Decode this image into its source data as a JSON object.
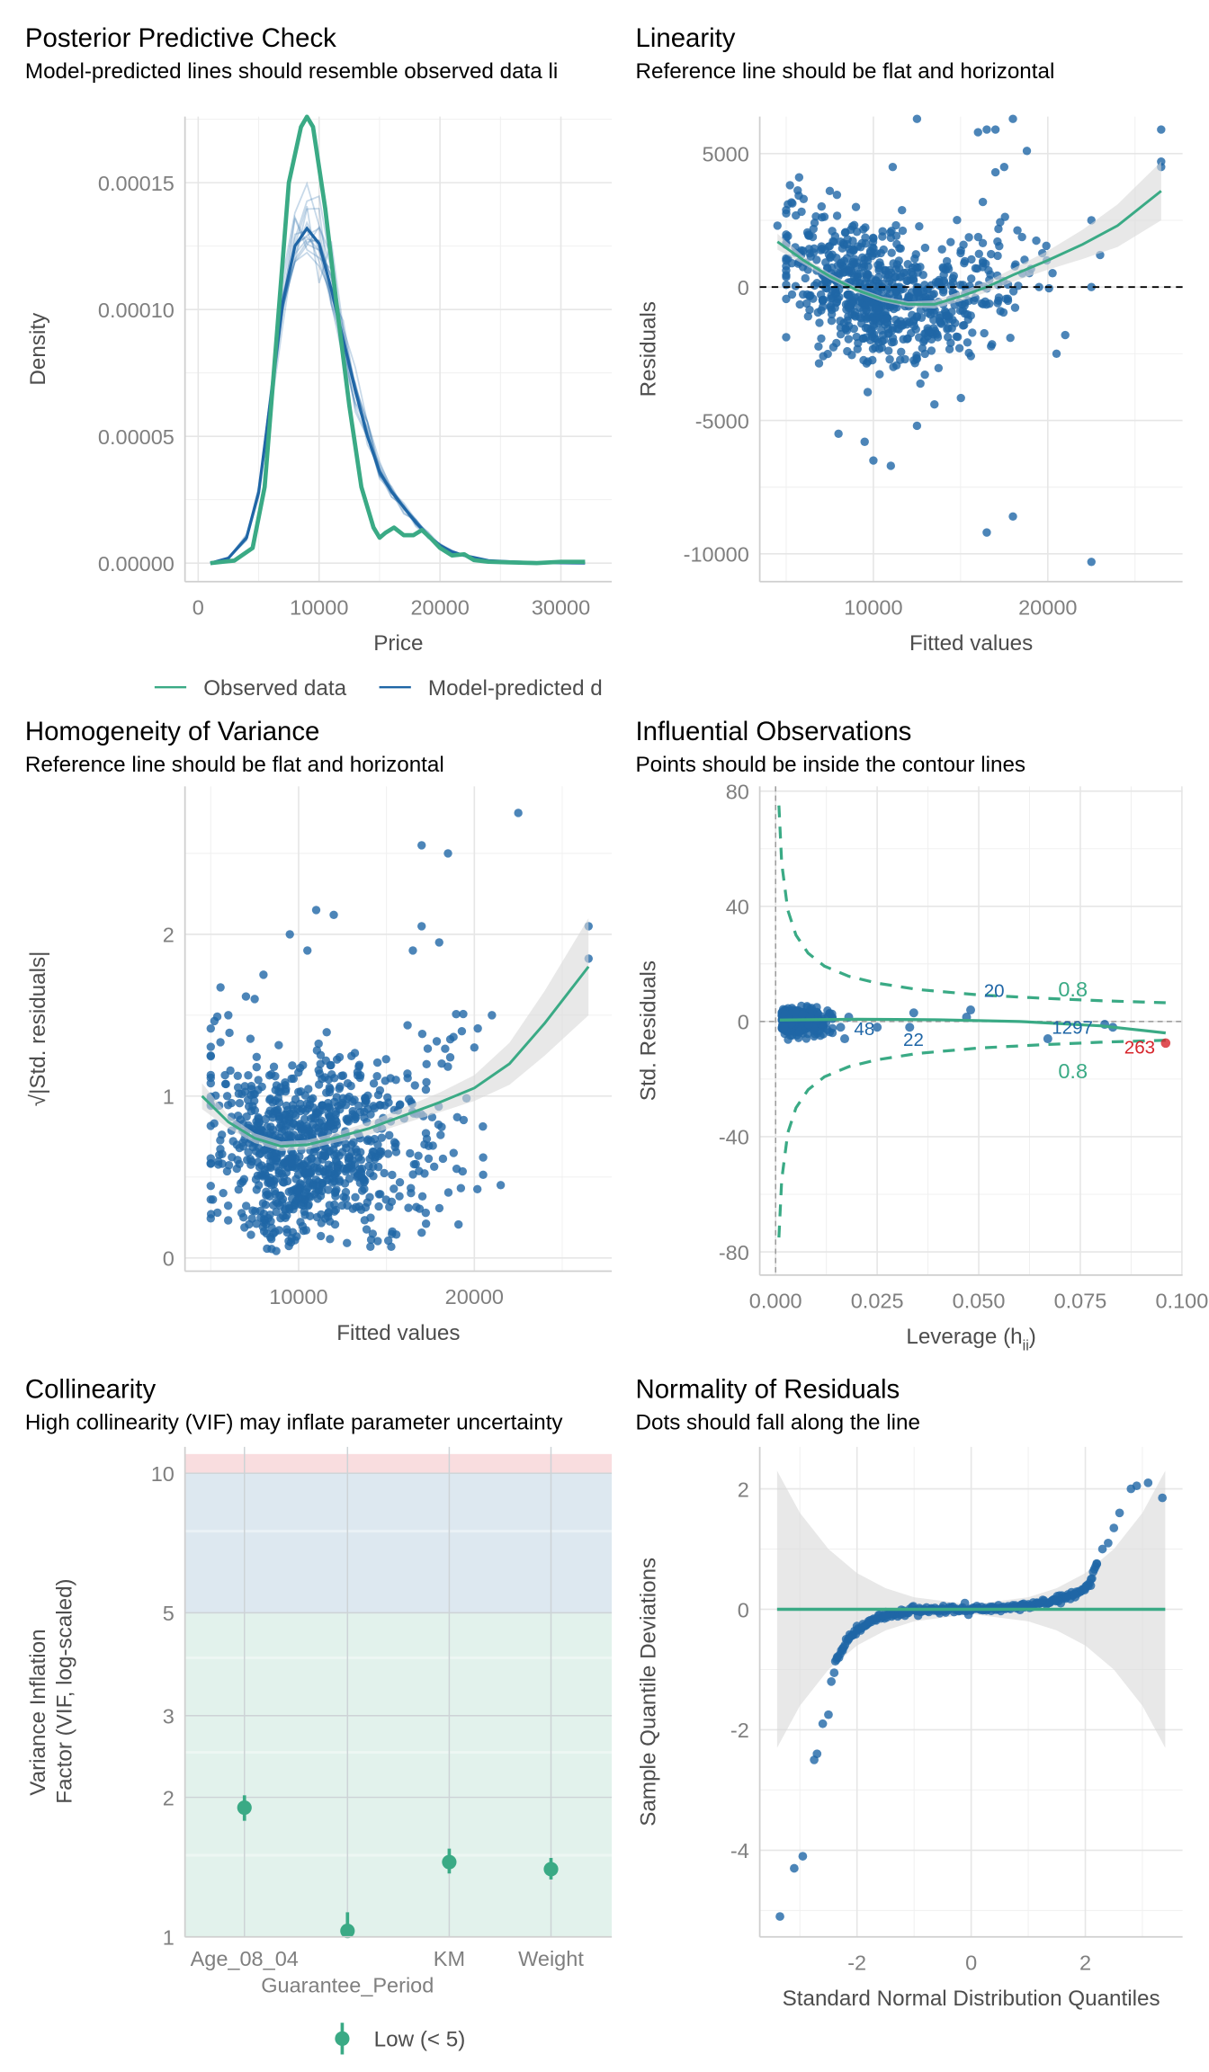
{
  "colors": {
    "observed": "#3aaa85",
    "predicted": "#1f66a6",
    "point": "#1f66a6",
    "highlight": "#d7262c",
    "ci": "#d9d9d9",
    "zone_low": "#e2f2ec",
    "zone_moderate": "#dde8f0",
    "zone_high": "#f9dddf"
  },
  "chart_data": [
    {
      "type": "line",
      "title": "Posterior Predictive Check",
      "subtitle": "Model-predicted lines should resemble observed data li",
      "xlabel": "Price",
      "ylabel": "Density",
      "xlim": [
        0,
        32500
      ],
      "ylim": [
        0,
        0.000178
      ],
      "xticks": [
        "0",
        "10000",
        "20000",
        "30000"
      ],
      "xtick_values": [
        0,
        10000,
        20000,
        30000
      ],
      "yticks": [
        "0.00000",
        "0.00005",
        "0.00010",
        "0.00015"
      ],
      "ytick_values": [
        0,
        5e-05,
        0.0001,
        0.00015
      ],
      "legend": [
        "Observed data",
        "Model-predicted d"
      ],
      "legend_position": "bottom",
      "grid": true,
      "series": [
        {
          "name": "Observed data",
          "x": [
            1000,
            3000,
            4500,
            5500,
            6500,
            7500,
            8500,
            9000,
            9500,
            10500,
            11500,
            12500,
            13500,
            14500,
            15000,
            15500,
            16200,
            17000,
            17800,
            18500,
            19200,
            20000,
            21000,
            22000,
            22800,
            24000,
            25500,
            28000,
            30000,
            32000
          ],
          "y": [
            0,
            1e-06,
            6e-06,
            3e-05,
            9e-05,
            0.00015,
            0.000172,
            0.000176,
            0.000172,
            0.00014,
            0.0001,
            6.2e-05,
            3e-05,
            1.4e-05,
            1e-05,
            1.2e-05,
            1.4e-05,
            1.1e-05,
            1.1e-05,
            1.3e-05,
            1e-05,
            6e-06,
            3e-06,
            3.5e-06,
            1.2e-06,
            5e-07,
            3e-07,
            0,
            5e-07,
            5e-07
          ]
        },
        {
          "name": "Model-predicted d",
          "x": [
            1000,
            2500,
            4000,
            5000,
            6000,
            7000,
            8000,
            9000,
            10000,
            11000,
            12000,
            13000,
            14000,
            15000,
            16000,
            17000,
            18000,
            19000,
            20000,
            21000,
            22000,
            24000,
            26000,
            28000,
            32000
          ],
          "y": [
            0,
            2e-06,
            1e-05,
            2.8e-05,
            6.5e-05,
            0.000103,
            0.000125,
            0.000132,
            0.000126,
            0.000108,
            8.8e-05,
            6.8e-05,
            5e-05,
            3.6e-05,
            2.8e-05,
            2.2e-05,
            1.6e-05,
            1.1e-05,
            7e-06,
            4.5e-06,
            3e-06,
            1e-06,
            5e-07,
            2e-07,
            0
          ]
        }
      ]
    },
    {
      "type": "scatter",
      "title": "Linearity",
      "subtitle": "Reference line should be flat and horizontal",
      "xlabel": "Fitted values",
      "ylabel": "Residuals",
      "xticks": [
        "10000",
        "20000"
      ],
      "xtick_values": [
        10000,
        20000
      ],
      "yticks": [
        "5000",
        "0",
        "-5000",
        "-10000"
      ],
      "ytick_values": [
        5000,
        0,
        -5000,
        -10000
      ],
      "reference_line": 0,
      "grid": true,
      "smooth": {
        "x": [
          4500,
          6000,
          7500,
          9000,
          10500,
          12000,
          13500,
          15000,
          16500,
          18000,
          20000,
          22000,
          24000,
          26500
        ],
        "y": [
          1700,
          1000,
          400,
          -100,
          -450,
          -650,
          -650,
          -350,
          0,
          450,
          1000,
          1600,
          2300,
          3600
        ],
        "ci_halfwidth": [
          300,
          150,
          120,
          100,
          100,
          110,
          150,
          180,
          200,
          250,
          350,
          550,
          800,
          1100
        ]
      },
      "points": {
        "x": [
          12500,
          16000,
          16500,
          17000,
          18000,
          18800,
          26500,
          26500,
          26500,
          17000,
          17500,
          22500,
          23000,
          22500,
          19500,
          8000,
          9500,
          10000,
          11000,
          12500,
          13500,
          16500,
          18000,
          22500,
          20500,
          21000,
          4500,
          6000,
          9000,
          7500
        ],
        "y": [
          6300,
          5800,
          5900,
          5900,
          6300,
          5100,
          5900,
          4700,
          4500,
          4300,
          4500,
          2500,
          1200,
          0,
          0,
          -5500,
          -5800,
          -6500,
          -6700,
          -5200,
          -4400,
          -9200,
          -8600,
          -10300,
          -2500,
          -1800,
          2300,
          3300,
          3000,
          3600
        ]
      }
    },
    {
      "type": "scatter",
      "title": "Homogeneity of Variance",
      "subtitle": "Reference line should be flat and horizontal",
      "xlabel": "Fitted values",
      "ylabel": "√|Std. residuals|",
      "xticks": [
        "10000",
        "20000"
      ],
      "xtick_values": [
        10000,
        20000
      ],
      "yticks": [
        "0",
        "1",
        "2"
      ],
      "ytick_values": [
        0,
        1,
        2
      ],
      "grid": true,
      "smooth": {
        "x": [
          4500,
          6000,
          7500,
          9000,
          10500,
          12000,
          14000,
          16000,
          18000,
          20000,
          22000,
          24000,
          26500
        ],
        "y": [
          1.0,
          0.84,
          0.74,
          0.69,
          0.7,
          0.74,
          0.8,
          0.88,
          0.96,
          1.05,
          1.2,
          1.45,
          1.8
        ],
        "ci_halfwidth": [
          0.08,
          0.04,
          0.03,
          0.03,
          0.03,
          0.03,
          0.04,
          0.05,
          0.06,
          0.08,
          0.13,
          0.2,
          0.3
        ]
      },
      "points": {
        "x": [
          22500,
          17000,
          18500,
          11000,
          12000,
          26500,
          26500,
          17000,
          9500,
          10500,
          18000,
          16500,
          8000,
          21000,
          20000,
          21500,
          7500,
          5000,
          6000
        ],
        "y": [
          2.75,
          2.55,
          2.5,
          2.15,
          2.12,
          2.05,
          1.85,
          2.05,
          2.0,
          1.9,
          1.95,
          1.9,
          1.75,
          1.5,
          1.3,
          0.45,
          1.6,
          1.25,
          1.5
        ]
      }
    },
    {
      "type": "scatter",
      "title": "Influential Observations",
      "subtitle": "Points should be inside the contour lines",
      "xlabel": "Leverage (h",
      "xlabel_sub": "ii",
      "xlabel_end": ")",
      "ylabel": "Std. Residuals",
      "xticks": [
        "0.000",
        "0.025",
        "0.050",
        "0.075",
        "0.100"
      ],
      "xtick_values": [
        0,
        0.025,
        0.05,
        0.075,
        0.1
      ],
      "yticks": [
        "80",
        "40",
        "0",
        "-40",
        "-80"
      ],
      "ytick_values": [
        80,
        40,
        0,
        -40,
        -80
      ],
      "grid": true,
      "contour_label": "0.8",
      "contour": {
        "h": [
          0.0008,
          0.0015,
          0.003,
          0.005,
          0.008,
          0.012,
          0.018,
          0.025,
          0.035,
          0.05,
          0.065,
          0.08,
          0.096
        ],
        "std_residual": [
          75,
          55,
          38.7,
          30,
          23.7,
          19.2,
          15.7,
          13.3,
          11.1,
          9.2,
          8.1,
          7.2,
          6.5
        ]
      },
      "smooth": {
        "x": [
          0.001,
          0.02,
          0.04,
          0.06,
          0.08,
          0.096
        ],
        "y": [
          0.5,
          0.8,
          0.6,
          0,
          -1.5,
          -4
        ]
      },
      "labelled_points": [
        {
          "label": "20",
          "h": 0.048,
          "r": 4
        },
        {
          "label": "48",
          "h": 0.018,
          "r": -1
        },
        {
          "label": "22",
          "h": 0.034,
          "r": -2
        },
        {
          "label": "1297",
          "h": 0.082,
          "r": -1.5
        },
        {
          "label": "263",
          "h": 0.096,
          "r": -7.5
        }
      ],
      "points": {
        "h": [
          0.017,
          0.018,
          0.016,
          0.025,
          0.033,
          0.034,
          0.047,
          0.048,
          0.067,
          0.081,
          0.083
        ],
        "r": [
          -6,
          1.5,
          -2,
          -2,
          -2,
          3,
          1.5,
          4,
          -6,
          -1,
          -2
        ]
      }
    },
    {
      "type": "scatter",
      "title": "Collinearity",
      "subtitle": "High collinearity (VIF) may inflate parameter uncertainty",
      "ylabel": "Variance Inflation",
      "ylabel2": "Factor (VIF, log-scaled)",
      "log_y": true,
      "ylim": [
        1,
        11
      ],
      "yticks": [
        "1",
        "2",
        "3",
        "5",
        "10"
      ],
      "ytick_values": [
        1,
        2,
        3,
        5,
        10
      ],
      "categories": [
        "Age_08_04",
        "Guarantee_Period",
        "KM",
        "Weight"
      ],
      "values": [
        1.9,
        1.03,
        1.45,
        1.4
      ],
      "ci_low": [
        1.78,
        1.0,
        1.37,
        1.33
      ],
      "ci_high": [
        2.02,
        1.13,
        1.55,
        1.48
      ],
      "zones": [
        {
          "name": "Low (< 5)",
          "from": 1,
          "to": 5
        },
        {
          "from": 5,
          "to": 10
        },
        {
          "from": 10,
          "to": 11
        }
      ],
      "legend": [
        "Low (< 5)"
      ],
      "legend_position": "bottom",
      "grid": true
    },
    {
      "type": "scatter",
      "title": "Normality of Residuals",
      "subtitle": "Dots should fall along the line",
      "xlabel": "Standard Normal Distribution Quantiles",
      "ylabel": "Sample Quantile Deviations",
      "xticks": [
        "-2",
        "0",
        "2"
      ],
      "xtick_values": [
        -2,
        0,
        2
      ],
      "yticks": [
        "2",
        "0",
        "-2",
        "-4"
      ],
      "ytick_values": [
        2,
        0,
        -2,
        -4
      ],
      "grid": true,
      "reference_line": 0,
      "points": {
        "x": [
          -3.35,
          -3.1,
          -2.95,
          -2.75,
          -2.7,
          -2.6,
          -2.5,
          -2.45,
          -2.35,
          -2.25,
          -2.15,
          -2.0,
          -1.8,
          -1.5,
          -1.2,
          -0.9,
          -0.5,
          0,
          0.5,
          0.9,
          1.2,
          1.5,
          1.8,
          2.0,
          2.1,
          2.2,
          2.3,
          2.4,
          2.5,
          2.6,
          2.8,
          2.9,
          3.1,
          3.35
        ],
        "y": [
          -5.1,
          -4.3,
          -4.1,
          -2.5,
          -2.4,
          -1.9,
          -1.75,
          -1.2,
          -0.8,
          -0.65,
          -0.5,
          -0.35,
          -0.2,
          -0.1,
          -0.05,
          0,
          0,
          0,
          0.02,
          0.05,
          0.1,
          0.15,
          0.25,
          0.35,
          0.5,
          0.75,
          1.0,
          1.1,
          1.35,
          1.6,
          2.0,
          2.05,
          2.1,
          1.85
        ]
      },
      "ci": {
        "x": [
          -3.4,
          -3,
          -2.5,
          -2,
          -1.5,
          -1,
          0,
          1,
          1.5,
          2,
          2.5,
          3,
          3.4
        ],
        "halfwidth": [
          2.3,
          1.6,
          1.0,
          0.6,
          0.35,
          0.2,
          0.08,
          0.2,
          0.35,
          0.6,
          1.0,
          1.6,
          2.3
        ]
      }
    }
  ]
}
